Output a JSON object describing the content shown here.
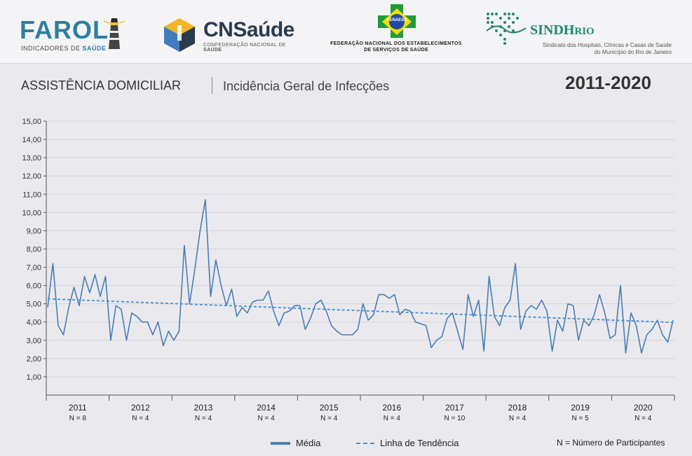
{
  "header": {
    "farol": {
      "word": "FAROL",
      "sub_prefix": "INDICADORES DE ",
      "sub_bold": "SAÚDE"
    },
    "cns": {
      "name": "CNSaúde",
      "sub_prefix": "CONFEDERAÇÃO NACIONAL DE ",
      "sub_bold": "SAÚDE"
    },
    "fenaess": {
      "badge": "FENAESS",
      "line1": "FEDERAÇÃO NACIONAL DOS ESTABELECIMENTOS",
      "line2": "DE SERVIÇOS DE SAÚDE"
    },
    "sindhrio": {
      "name_a": "SINDH",
      "name_b": "RIO",
      "line1": "Sindicato dos Hospitais, Clínicas e Casas de Saúde",
      "line2": "do Município do Rio de Janeiro"
    }
  },
  "titles": {
    "left": "ASSISTÊNCIA DOMICILIAR",
    "right": "Incidência Geral de Infecções",
    "period": "2011-2020"
  },
  "legend": {
    "media": "Média",
    "trend": "Linha de Tendência",
    "note": "N = Número de Participantes"
  },
  "colors": {
    "series": "#4a7db5",
    "trend": "#4a8fd0",
    "grid": "#d4d4d8",
    "axis": "#555555"
  },
  "chart_data": {
    "type": "line",
    "ylim": [
      0,
      15
    ],
    "yticks": [
      "1,00",
      "2,00",
      "3,00",
      "4,00",
      "5,00",
      "6,00",
      "7,00",
      "8,00",
      "9,00",
      "10,00",
      "11,00",
      "12,00",
      "13,00",
      "14,00",
      "15,00"
    ],
    "grid": true,
    "legend_position": "bottom",
    "years": [
      {
        "label": "2011",
        "n": "N = 8"
      },
      {
        "label": "2012",
        "n": "N = 4"
      },
      {
        "label": "2013",
        "n": "N = 4"
      },
      {
        "label": "2014",
        "n": "N = 4"
      },
      {
        "label": "2015",
        "n": "N = 4"
      },
      {
        "label": "2016",
        "n": "N = 4"
      },
      {
        "label": "2017",
        "n": "N = 10"
      },
      {
        "label": "2018",
        "n": "N = 4"
      },
      {
        "label": "2019",
        "n": "N = 5"
      },
      {
        "label": "2020",
        "n": "N = 4"
      }
    ],
    "series": [
      {
        "name": "Média",
        "values": [
          4.8,
          7.2,
          3.8,
          3.3,
          4.8,
          5.9,
          4.9,
          6.5,
          5.6,
          6.6,
          5.4,
          6.5,
          3.0,
          4.9,
          4.7,
          3.0,
          4.5,
          4.3,
          4.0,
          4.0,
          3.3,
          4.0,
          2.7,
          3.5,
          3.0,
          3.5,
          8.2,
          5.0,
          6.9,
          9.0,
          10.7,
          5.4,
          7.4,
          6.0,
          4.9,
          5.8,
          4.3,
          4.8,
          4.5,
          5.1,
          5.2,
          5.2,
          5.7,
          4.6,
          3.8,
          4.5,
          4.6,
          4.9,
          4.9,
          3.6,
          4.2,
          5.0,
          5.2,
          4.6,
          3.8,
          3.5,
          3.3,
          3.3,
          3.3,
          3.6,
          5.0,
          4.1,
          4.4,
          5.5,
          5.5,
          5.3,
          5.5,
          4.4,
          4.7,
          4.6,
          4.0,
          3.9,
          3.8,
          2.6,
          3.0,
          3.2,
          4.2,
          4.5,
          3.5,
          2.5,
          5.5,
          4.3,
          5.2,
          2.4,
          6.5,
          4.3,
          3.8,
          4.8,
          5.2,
          7.2,
          3.6,
          4.6,
          4.9,
          4.7,
          5.2,
          4.6,
          2.4,
          4.1,
          3.5,
          5.0,
          4.9,
          3.0,
          4.1,
          3.8,
          4.4,
          5.5,
          4.5,
          3.1,
          3.3,
          6.0,
          2.3,
          4.5,
          3.8,
          2.3,
          3.3,
          3.6,
          4.1,
          3.3,
          2.9,
          4.1
        ]
      },
      {
        "name": "Linha de Tendência",
        "start": 5.27,
        "end": 3.98
      }
    ]
  }
}
